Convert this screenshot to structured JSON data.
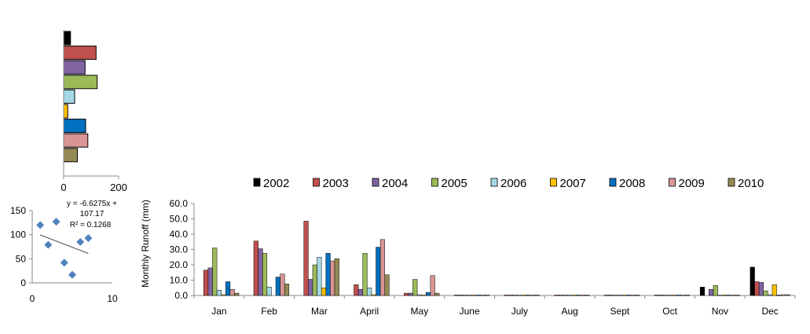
{
  "chart_data": [
    {
      "type": "bar",
      "orientation": "horizontal",
      "categories": [
        "2002",
        "2003",
        "2004",
        "2005",
        "2006",
        "2007",
        "2008",
        "2009",
        "2010"
      ],
      "values": [
        25,
        118,
        78,
        122,
        40,
        15,
        80,
        88,
        50
      ],
      "xlim": [
        0,
        200
      ],
      "x_ticks": [
        "0",
        "200"
      ],
      "grid": false
    },
    {
      "type": "scatter",
      "points": [
        [
          1,
          120
        ],
        [
          2,
          79
        ],
        [
          3,
          127
        ],
        [
          4,
          42
        ],
        [
          5,
          17
        ],
        [
          6,
          85
        ],
        [
          7,
          93
        ]
      ],
      "xlim": [
        0,
        10
      ],
      "ylim": [
        0,
        150
      ],
      "x_ticks": [
        "0",
        "10"
      ],
      "y_ticks": [
        "0",
        "50",
        "100",
        "150"
      ],
      "trendline": {
        "equation_line1": "y = -6.6275x +",
        "equation_line2": "107.17",
        "r2": "R² = 0.1268"
      },
      "grid": false
    },
    {
      "type": "bar",
      "ylabel": "Monthly  Runoff (mm)",
      "ylim": [
        0,
        60
      ],
      "y_ticks": [
        "0.0",
        "10.0",
        "20.0",
        "30.0",
        "40.0",
        "50.0",
        "60.0"
      ],
      "legend_position": "top",
      "grid": false,
      "categories": [
        "Jan",
        "Feb",
        "Mar",
        "April",
        "May",
        "June",
        "July",
        "Aug",
        "Sept",
        "Oct",
        "Nov",
        "Dec"
      ],
      "series": [
        {
          "name": "2002",
          "color": "#000000",
          "values": [
            0,
            0,
            0,
            0,
            0,
            0,
            0,
            0,
            0,
            0,
            5.5,
            18.5
          ]
        },
        {
          "name": "2003",
          "color": "#c0504d",
          "values": [
            16.5,
            35.5,
            48.5,
            7.0,
            1.5,
            0.3,
            0.3,
            0.3,
            0.3,
            0.3,
            0,
            9.0
          ]
        },
        {
          "name": "2004",
          "color": "#8064a2",
          "values": [
            18.0,
            30.5,
            10.5,
            4.0,
            1.5,
            0.3,
            0.3,
            0.3,
            0.3,
            0.3,
            4.0,
            8.5
          ]
        },
        {
          "name": "2005",
          "color": "#9bbb59",
          "values": [
            31.0,
            27.5,
            20.0,
            27.5,
            10.5,
            0.3,
            0.3,
            0.3,
            0.3,
            0.3,
            6.5,
            3.0
          ]
        },
        {
          "name": "2006",
          "color": "#a5d8e6",
          "values": [
            3.5,
            5.5,
            25.0,
            5.0,
            0.5,
            0.3,
            0.3,
            0.3,
            0.3,
            0.3,
            0.3,
            0.5
          ]
        },
        {
          "name": "2007",
          "color": "#ffc000",
          "values": [
            0.5,
            0,
            5.0,
            0.5,
            0.3,
            0.3,
            0.3,
            0.3,
            0.3,
            0.3,
            0.3,
            7.0
          ]
        },
        {
          "name": "2008",
          "color": "#0070c0",
          "values": [
            9.0,
            12.0,
            27.5,
            31.5,
            2.0,
            0.3,
            0.3,
            0.3,
            0.3,
            0.3,
            0.3,
            0.3
          ]
        },
        {
          "name": "2009",
          "color": "#d99594",
          "values": [
            4.0,
            14.0,
            22.5,
            36.5,
            13.0,
            0.3,
            0.3,
            0.3,
            0.3,
            0.3,
            0.3,
            0.5
          ]
        },
        {
          "name": "2010",
          "color": "#948a54",
          "values": [
            1.5,
            7.5,
            24.0,
            13.5,
            1.5,
            0.3,
            0.3,
            0.3,
            0.3,
            0.3,
            0.3,
            0.5
          ]
        }
      ]
    }
  ]
}
